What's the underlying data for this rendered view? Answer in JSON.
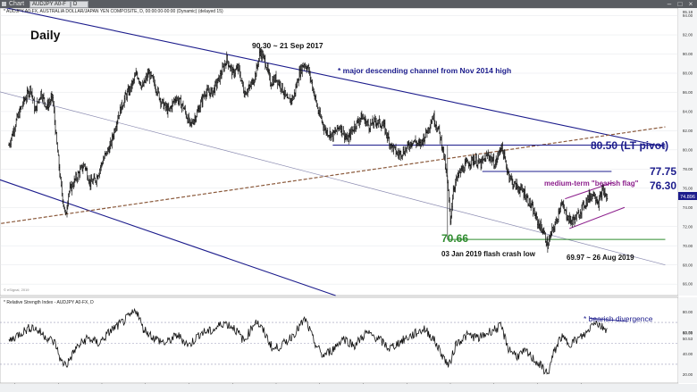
{
  "window": {
    "app_label": "Chart",
    "symbol_field": "AUDJPY A0-F",
    "period_field": "D",
    "header": "* AUDJPY A0-FX, AUSTRALIA DOLLAR/JAPAN YEN COMPOSITE, D, 00:00:00-00:00 (Dynamic) (delayed 15)",
    "watermark": "© eSignal, 2019",
    "corner_label": "Dys",
    "date_marker": "25/10/2016"
  },
  "chart_data": [
    {
      "type": "line",
      "subtype": "ohlc-bars",
      "title": "Daily",
      "price_axis": {
        "ylim": [
          64.8,
          94.8
        ],
        "ticks": [
          66.0,
          68.0,
          70.0,
          72.0,
          74.0,
          76.0,
          78.0,
          80.0,
          82.0,
          84.0,
          86.0,
          88.0,
          90.0,
          92.0,
          94.0
        ],
        "top_label": "95.18",
        "current_price_label": "74.896",
        "current_price": 74.896
      },
      "x_axis": {
        "labels": [
          "Apr",
          "Jul",
          "2017",
          "Apr",
          "Jul",
          "Oct",
          "2018",
          "Apr",
          "Jul",
          "Oct",
          "2019",
          "Apr",
          "Jul",
          "Oct"
        ],
        "range_months": [
          0,
          45.2
        ]
      },
      "price_path": [
        [
          0,
          80.5
        ],
        [
          0.5,
          83.0
        ],
        [
          1.0,
          85.0
        ],
        [
          1.5,
          86.5
        ],
        [
          1.8,
          84.0
        ],
        [
          2.2,
          86.0
        ],
        [
          2.6,
          84.5
        ],
        [
          3.0,
          85.5
        ],
        [
          3.3,
          80.5
        ],
        [
          3.6,
          76.0
        ],
        [
          3.9,
          73.0
        ],
        [
          4.1,
          75.5
        ],
        [
          4.6,
          77.0
        ],
        [
          5.2,
          78.5
        ],
        [
          5.6,
          76.5
        ],
        [
          6.0,
          77.0
        ],
        [
          6.5,
          79.0
        ],
        [
          7.0,
          80.5
        ],
        [
          7.5,
          83.5
        ],
        [
          8.0,
          85.5
        ],
        [
          8.4,
          86.5
        ],
        [
          8.8,
          88.0
        ],
        [
          9.2,
          86.5
        ],
        [
          9.6,
          88.0
        ],
        [
          10.0,
          87.0
        ],
        [
          10.5,
          85.0
        ],
        [
          11.0,
          84.0
        ],
        [
          11.5,
          85.5
        ],
        [
          12.0,
          84.5
        ],
        [
          12.5,
          82.5
        ],
        [
          13.0,
          84.0
        ],
        [
          13.5,
          86.0
        ],
        [
          14.0,
          86.0
        ],
        [
          14.5,
          87.5
        ],
        [
          15.0,
          89.5
        ],
        [
          15.4,
          88.0
        ],
        [
          15.8,
          88.5
        ],
        [
          16.2,
          86.0
        ],
        [
          16.6,
          86.5
        ],
        [
          17.0,
          88.0
        ],
        [
          17.3,
          90.3
        ],
        [
          17.7,
          89.0
        ],
        [
          18.0,
          87.0
        ],
        [
          18.4,
          87.5
        ],
        [
          18.8,
          86.5
        ],
        [
          19.2,
          85.0
        ],
        [
          19.6,
          85.5
        ],
        [
          20.0,
          88.0
        ],
        [
          20.3,
          89.0
        ],
        [
          20.6,
          88.5
        ],
        [
          21.0,
          86.0
        ],
        [
          21.3,
          84.0
        ],
        [
          21.8,
          82.0
        ],
        [
          22.3,
          81.5
        ],
        [
          22.8,
          82.5
        ],
        [
          23.3,
          81.0
        ],
        [
          23.8,
          82.5
        ],
        [
          24.3,
          83.5
        ],
        [
          24.8,
          82.5
        ],
        [
          25.3,
          83.0
        ],
        [
          25.8,
          82.5
        ],
        [
          26.3,
          80.5
        ],
        [
          26.8,
          79.5
        ],
        [
          27.3,
          80.0
        ],
        [
          27.8,
          81.0
        ],
        [
          28.3,
          80.5
        ],
        [
          28.8,
          82.0
        ],
        [
          29.2,
          83.5
        ],
        [
          29.6,
          82.0
        ],
        [
          29.9,
          80.0
        ],
        [
          30.2,
          76.5
        ],
        [
          30.4,
          72.5
        ],
        [
          30.6,
          76.0
        ],
        [
          31.0,
          77.5
        ],
        [
          31.5,
          78.5
        ],
        [
          32.0,
          79.0
        ],
        [
          32.5,
          78.5
        ],
        [
          33.0,
          79.5
        ],
        [
          33.5,
          78.5
        ],
        [
          33.9,
          80.5
        ],
        [
          34.3,
          78.0
        ],
        [
          34.7,
          76.5
        ],
        [
          35.1,
          76.0
        ],
        [
          35.5,
          75.5
        ],
        [
          36.0,
          74.0
        ],
        [
          36.4,
          72.5
        ],
        [
          36.8,
          71.5
        ],
        [
          37.1,
          70.0
        ],
        [
          37.4,
          71.5
        ],
        [
          37.7,
          72.5
        ],
        [
          38.0,
          74.5
        ],
        [
          38.3,
          73.5
        ],
        [
          38.7,
          72.5
        ],
        [
          39.1,
          73.0
        ],
        [
          39.5,
          74.0
        ],
        [
          39.9,
          75.0
        ],
        [
          40.3,
          75.5
        ],
        [
          40.6,
          74.5
        ],
        [
          40.9,
          75.8
        ],
        [
          41.2,
          74.896
        ]
      ],
      "lines": [
        {
          "label": "* major descending channel from Nov 2014 high",
          "from": [
            -2.0,
            95.4
          ],
          "to": [
            45.2,
            80.3
          ]
        },
        {
          "label": "channel middle",
          "from": [
            -2.0,
            86.6
          ],
          "to": [
            45.2,
            68.0
          ]
        },
        {
          "label": "channel lower",
          "from": [
            -2.0,
            77.6
          ],
          "to": [
            22.5,
            64.8
          ]
        },
        {
          "label": "long-term support (dashed)",
          "from": [
            -2.0,
            72.0
          ],
          "to": [
            45.2,
            82.4
          ],
          "dashed": true
        },
        {
          "label": "80.50 (LT pivot)",
          "value": 80.5,
          "from": [
            22.3,
            80.5
          ],
          "to": [
            45.2,
            80.5
          ]
        },
        {
          "label": "77.75",
          "value": 77.75,
          "from": [
            32.6,
            77.75
          ],
          "to": [
            41.5,
            77.75
          ]
        },
        {
          "label": "70.66",
          "value": 70.66,
          "from": [
            30.2,
            70.66
          ],
          "to": [
            45.2,
            70.66
          ]
        },
        {
          "label": "bearish flag upper",
          "from": [
            38.3,
            74.9
          ],
          "to": [
            41.6,
            76.6
          ]
        },
        {
          "label": "bearish flag lower",
          "from": [
            38.6,
            71.8
          ],
          "to": [
            42.4,
            74.0
          ]
        }
      ],
      "annotations": [
        {
          "text": "Daily"
        },
        {
          "text": "90.30 ~ 21 Sep 2017",
          "x": 17.3,
          "y": 90.3
        },
        {
          "text": "* major descending channel from Nov 2014 high"
        },
        {
          "text": "80.50 (LT pivot)",
          "color": "#1c1c8c"
        },
        {
          "text": "77.75",
          "color": "#1c1c8c"
        },
        {
          "text": "76.30",
          "color": "#1c1c8c"
        },
        {
          "text": "medium-term \"bearish flag\"",
          "color": "#8c1f8c"
        },
        {
          "text": "70.66",
          "color": "#2e8b2e"
        },
        {
          "text": "03 Jan 2019 flash crash low",
          "x": 30.4,
          "y": 70.66
        },
        {
          "text": "69.97 ~ 26 Aug 2019",
          "x": 37.1,
          "y": 69.97
        }
      ]
    },
    {
      "type": "line",
      "title": "* Relative Strength Index - AUDJPY A0-FX, D",
      "ylim": [
        12,
        94
      ],
      "ticks": [
        20.0,
        40.0,
        60.0,
        80.0
      ],
      "value_labels": [
        "63.75",
        "50.53"
      ],
      "reference_lines": [
        30,
        50,
        70
      ],
      "rsi_path": [
        [
          0,
          52
        ],
        [
          0.8,
          60
        ],
        [
          1.6,
          66
        ],
        [
          2.4,
          58
        ],
        [
          3.2,
          50
        ],
        [
          3.6,
          32
        ],
        [
          4.0,
          30
        ],
        [
          4.6,
          45
        ],
        [
          5.4,
          55
        ],
        [
          6.2,
          50
        ],
        [
          7.0,
          62
        ],
        [
          7.8,
          70
        ],
        [
          8.4,
          77
        ],
        [
          8.8,
          82
        ],
        [
          9.2,
          65
        ],
        [
          10.0,
          55
        ],
        [
          10.8,
          50
        ],
        [
          11.6,
          58
        ],
        [
          12.4,
          48
        ],
        [
          13.2,
          60
        ],
        [
          14.0,
          62
        ],
        [
          14.8,
          70
        ],
        [
          15.5,
          65
        ],
        [
          16.2,
          52
        ],
        [
          17.0,
          72
        ],
        [
          17.6,
          60
        ],
        [
          18.2,
          44
        ],
        [
          19.0,
          50
        ],
        [
          19.8,
          62
        ],
        [
          20.4,
          73
        ],
        [
          21.0,
          52
        ],
        [
          21.6,
          38
        ],
        [
          22.3,
          44
        ],
        [
          23.0,
          55
        ],
        [
          23.8,
          48
        ],
        [
          24.6,
          60
        ],
        [
          25.4,
          55
        ],
        [
          26.2,
          45
        ],
        [
          27.0,
          52
        ],
        [
          27.8,
          58
        ],
        [
          28.6,
          64
        ],
        [
          29.2,
          55
        ],
        [
          29.8,
          40
        ],
        [
          30.3,
          28
        ],
        [
          30.8,
          50
        ],
        [
          31.6,
          58
        ],
        [
          32.4,
          55
        ],
        [
          33.2,
          62
        ],
        [
          33.9,
          66
        ],
        [
          34.4,
          45
        ],
        [
          35.0,
          38
        ],
        [
          35.6,
          42
        ],
        [
          36.2,
          34
        ],
        [
          36.8,
          26
        ],
        [
          37.1,
          20
        ],
        [
          37.5,
          40
        ],
        [
          38.0,
          56
        ],
        [
          38.6,
          50
        ],
        [
          39.2,
          54
        ],
        [
          39.8,
          60
        ],
        [
          40.3,
          72
        ],
        [
          40.8,
          66
        ],
        [
          41.2,
          63.75
        ]
      ],
      "annotations": [
        {
          "text": "* bearish divergence"
        }
      ]
    }
  ]
}
